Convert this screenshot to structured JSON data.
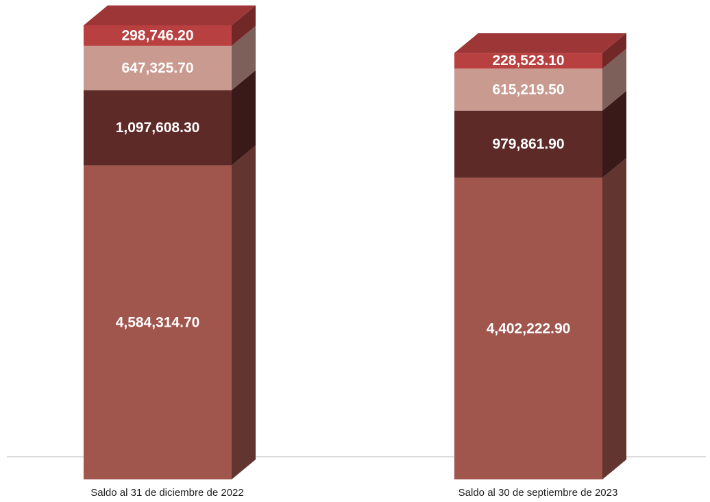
{
  "chart_data": {
    "type": "bar3d_stacked",
    "categories": [
      "Saldo al 31 de diciembre de 2022",
      "Saldo al 30 de septiembre de 2023"
    ],
    "series": [
      {
        "color": "#a0554d",
        "values": [
          4584314.7,
          4402222.9
        ],
        "value_labels": [
          "4,584,314.70",
          "4,402,222.90"
        ]
      },
      {
        "color": "#5e2a27",
        "values": [
          1097608.3,
          979861.9
        ],
        "value_labels": [
          "1,097,608.30",
          "979,861.90"
        ]
      },
      {
        "color": "#c99b90",
        "values": [
          647325.7,
          615219.5
        ],
        "value_labels": [
          "647,325.70",
          "615,219.50"
        ]
      },
      {
        "color": "#b94040",
        "values": [
          298746.2,
          228523.1
        ],
        "value_labels": [
          "298,746.20",
          "228,523.10"
        ]
      }
    ]
  }
}
